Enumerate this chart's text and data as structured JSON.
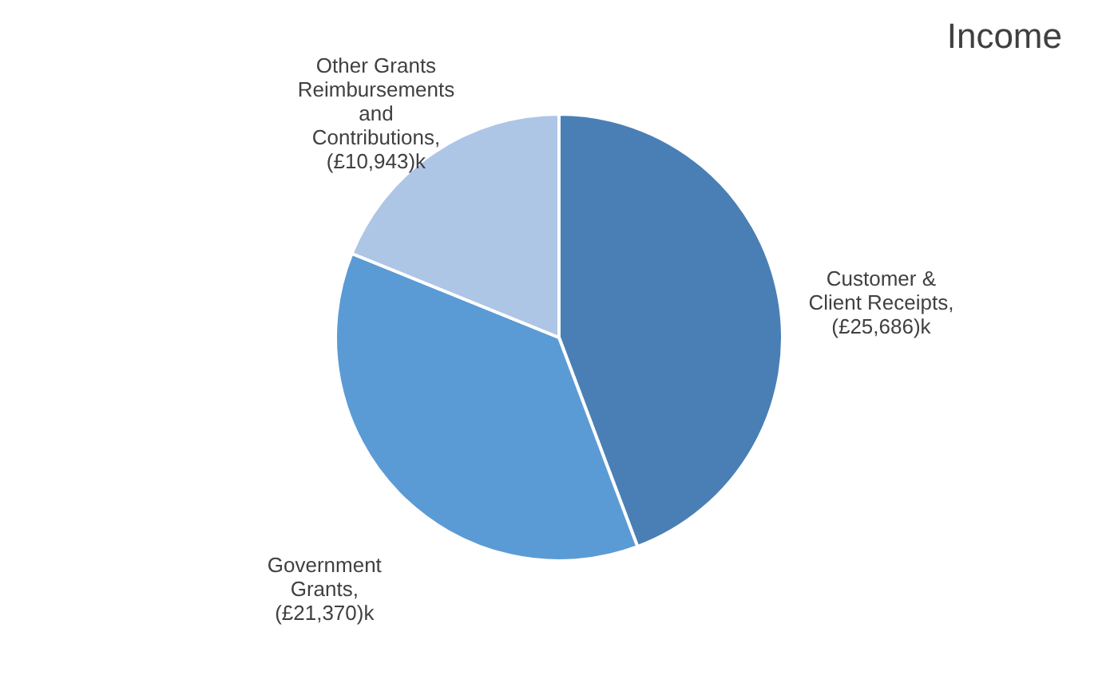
{
  "chart_data": {
    "type": "pie",
    "title": "Income",
    "categories": [
      "Customer & Client Receipts",
      "Government Grants",
      "Other Grants Reimbursements and Contributions"
    ],
    "values": [
      25686,
      21370,
      10943
    ],
    "value_labels": [
      ", (£25,686)k",
      ", (£21,370)k",
      ", (£10,943)k"
    ],
    "colors": [
      "#4a7fb5",
      "#5b9bd5",
      "#adc6e6"
    ],
    "legend": false
  }
}
